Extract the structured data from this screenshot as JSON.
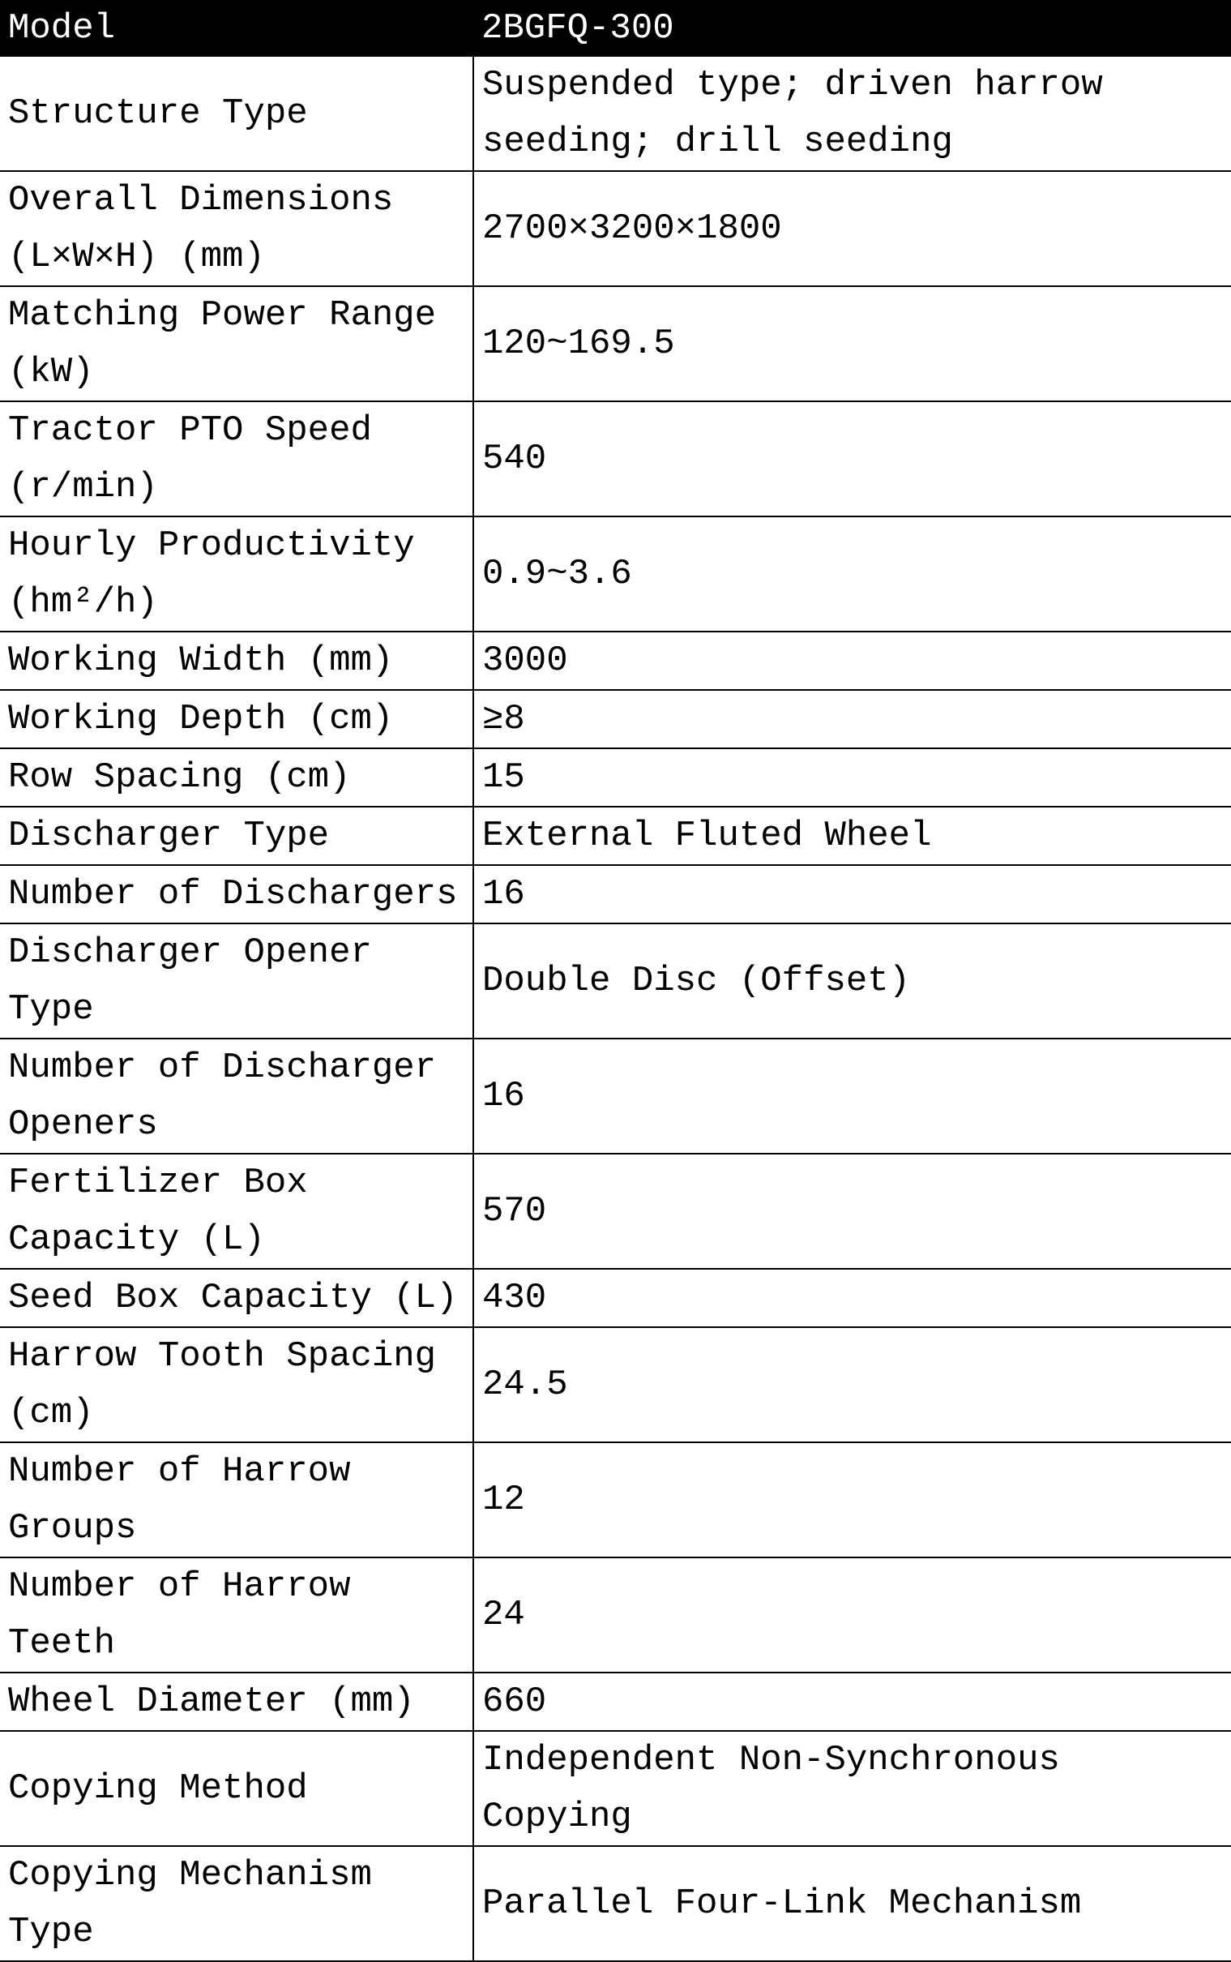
{
  "header": {
    "label": "Model",
    "value": "2BGFQ-300"
  },
  "rows": [
    {
      "label": "Structure Type",
      "value": "Suspended type; driven harrow seeding; drill seeding",
      "lines": 2
    },
    {
      "label": "Overall Dimensions (L×W×H) (mm)",
      "value": "2700×3200×1800",
      "lines": 2
    },
    {
      "label": "Matching Power Range (kW)",
      "value": "120~169.5",
      "lines": 2
    },
    {
      "label": "Tractor PTO Speed (r/min)",
      "value": "540",
      "lines": 2
    },
    {
      "label": "Hourly Productivity (hm²/h)",
      "value": "0.9~3.6",
      "lines": 2
    },
    {
      "label": "Working Width (mm)",
      "value": "3000",
      "lines": 1
    },
    {
      "label": "Working Depth (cm)",
      "value": "≥8",
      "lines": 1
    },
    {
      "label": "Row Spacing (cm)",
      "value": "15",
      "lines": 1
    },
    {
      "label": "Discharger Type",
      "value": "External Fluted Wheel",
      "lines": 1
    },
    {
      "label": "Number of Dischargers",
      "value": "16",
      "lines": 1
    },
    {
      "label": "Discharger Opener Type",
      "value": "Double Disc (Offset)",
      "lines": 2
    },
    {
      "label": "Number of Discharger Openers",
      "value": "16",
      "lines": 2
    },
    {
      "label": "Fertilizer Box Capacity (L)",
      "value": "570",
      "lines": 2
    },
    {
      "label": "Seed Box Capacity (L)",
      "value": "430",
      "lines": 1
    },
    {
      "label": "Harrow Tooth Spacing (cm)",
      "value": "24.5",
      "lines": 2
    },
    {
      "label": "Number of Harrow Groups",
      "value": "12",
      "lines": 2
    },
    {
      "label": "Number of Harrow Teeth",
      "value": "24",
      "lines": 2
    },
    {
      "label": "Wheel Diameter (mm)",
      "value": "660",
      "lines": 1
    },
    {
      "label": "Copying Method",
      "value": "Independent Non-Synchronous Copying",
      "lines": 2
    },
    {
      "label": "Copying Mechanism Type",
      "value": "Parallel Four-Link Mechanism",
      "lines": 2
    }
  ]
}
